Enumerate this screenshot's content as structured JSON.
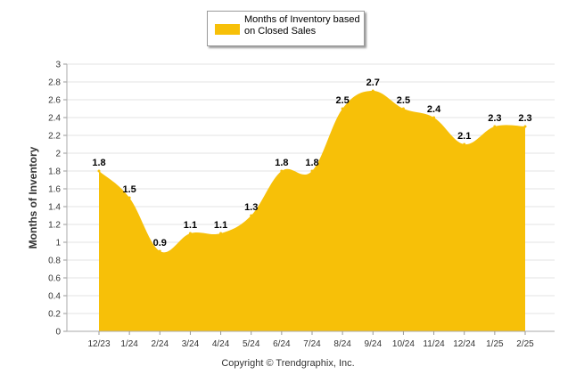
{
  "chart_data": {
    "type": "area",
    "categories": [
      "12/23",
      "1/24",
      "2/24",
      "3/24",
      "4/24",
      "5/24",
      "6/24",
      "7/24",
      "8/24",
      "9/24",
      "10/24",
      "11/24",
      "12/24",
      "1/25",
      "2/25"
    ],
    "series": [
      {
        "name": "Months of Inventory based on Closed Sales",
        "values": [
          1.8,
          1.5,
          0.9,
          1.1,
          1.1,
          1.3,
          1.8,
          1.8,
          2.5,
          2.7,
          2.5,
          2.4,
          2.1,
          2.3,
          2.3
        ],
        "color": "#f7c008"
      }
    ],
    "data_labels": [
      "1.8",
      "1.5",
      "0.9",
      "1.1",
      "1.1",
      "1.3",
      "1.8",
      "1.8",
      "2.5",
      "2.7",
      "2.5",
      "2.4",
      "2.1",
      "2.3",
      "2.3"
    ],
    "ylabel": "Months of Inventory",
    "xlabel": "",
    "ylim": [
      0,
      3
    ],
    "yticks": [
      "0",
      "0.2",
      "0.4",
      "0.6",
      "0.8",
      "1",
      "1.2",
      "1.4",
      "1.6",
      "1.8",
      "2",
      "2.2",
      "2.4",
      "2.6",
      "2.8",
      "3"
    ],
    "grid": true,
    "legend_placement": "top-center"
  },
  "legend": {
    "label": "Months of Inventory based on Closed Sales",
    "color": "#f7c008"
  },
  "footer": {
    "copyright": "Copyright © Trendgraphix, Inc."
  }
}
